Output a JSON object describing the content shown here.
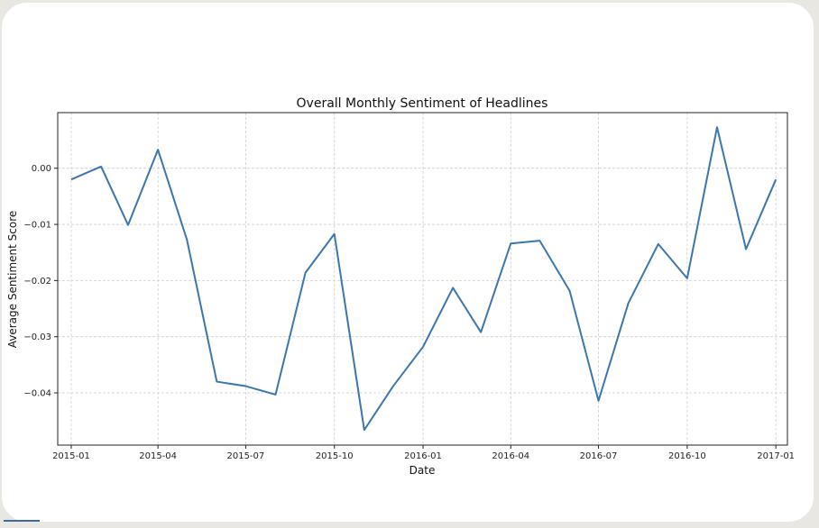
{
  "chart_data": {
    "type": "line",
    "title": "Overall Monthly Sentiment of Headlines",
    "xlabel": "Date",
    "ylabel": "Average Sentiment Score",
    "grid": true,
    "line_color": "#3a76af",
    "x_ticks": [
      "2015-01",
      "2015-04",
      "2015-07",
      "2015-10",
      "2016-01",
      "2016-04",
      "2016-07",
      "2016-10",
      "2017-01"
    ],
    "y_ticks": [
      "0.00",
      "−0.01",
      "−0.02",
      "−0.03",
      "−0.04"
    ],
    "y_tick_values": [
      0.0,
      -0.01,
      -0.02,
      -0.03,
      -0.04
    ],
    "xlim": [
      "2014-12-18",
      "2017-01-13"
    ],
    "ylim": [
      -0.0493,
      0.0099
    ],
    "x": [
      "2015-01-01",
      "2015-02-01",
      "2015-03-01",
      "2015-04-01",
      "2015-05-01",
      "2015-06-01",
      "2015-07-01",
      "2015-08-01",
      "2015-09-01",
      "2015-10-01",
      "2015-11-01",
      "2015-12-01",
      "2016-01-01",
      "2016-02-01",
      "2016-03-01",
      "2016-04-01",
      "2016-05-01",
      "2016-06-01",
      "2016-07-01",
      "2016-08-01",
      "2016-09-01",
      "2016-10-01",
      "2016-11-01",
      "2016-12-01",
      "2017-01-01"
    ],
    "values": [
      -0.002,
      0.0003,
      -0.0101,
      0.0033,
      -0.0127,
      -0.038,
      -0.0388,
      -0.0403,
      -0.0186,
      -0.0117,
      -0.0466,
      -0.0388,
      -0.0318,
      -0.0213,
      -0.0292,
      -0.0134,
      -0.0129,
      -0.0218,
      -0.0414,
      -0.024,
      -0.0135,
      -0.0196,
      0.0073,
      -0.0144,
      -0.002
    ]
  }
}
